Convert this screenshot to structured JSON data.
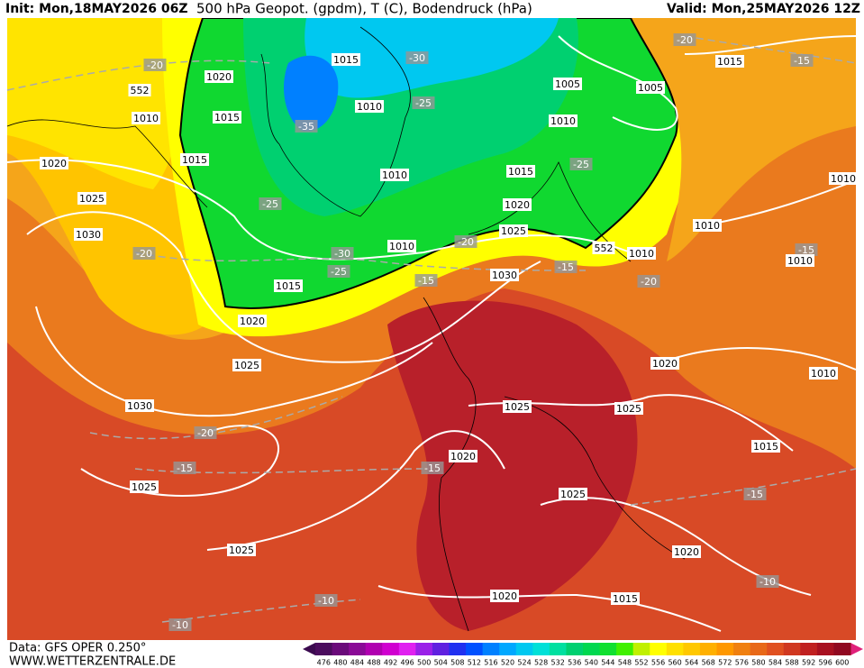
{
  "header": {
    "init": "Init: Mon,18MAY2026 06Z",
    "title": "500 hPa Geopot. (gpdm), T (C), Bodendruck (hPa)",
    "valid": "Valid: Mon,25MAY2026 12Z"
  },
  "map": {
    "labels": [
      "1015",
      "-30",
      "1020",
      "552",
      "1010",
      "1015",
      "1010",
      "-25",
      "-35",
      "1005",
      "1005",
      "1010",
      "1015",
      "-20",
      "-15",
      "-20",
      "1020",
      "1015",
      "1010",
      "1015",
      "-25",
      "1025",
      "-25",
      "1020",
      "1030",
      "1025",
      "1010",
      "-20",
      "552",
      "1010",
      "1010",
      "1010",
      "-15",
      "1010",
      "-20",
      "-30",
      "-25",
      "1015",
      "-15",
      "1030",
      "-15",
      "-20",
      "1020",
      "1025",
      "1020",
      "1010",
      "1030",
      "1025",
      "1025",
      "-20",
      "1020",
      "-15",
      "-15",
      "1015",
      "1025",
      "1025",
      "-15",
      "1025",
      "1020",
      "-10",
      "-10",
      "1020",
      "1015",
      "-10"
    ]
  },
  "footer": {
    "source": "Data: GFS OPER 0.250°",
    "site": "WWW.WETTERZENTRALE.DE"
  },
  "colorbar": {
    "labels": [
      476,
      480,
      484,
      488,
      492,
      496,
      500,
      504,
      508,
      512,
      516,
      520,
      524,
      528,
      532,
      536,
      540,
      544,
      548,
      552,
      556,
      560,
      564,
      568,
      572,
      576,
      580,
      584,
      588,
      592,
      596,
      600
    ],
    "colors": [
      "#4b0c5e",
      "#6a0a7a",
      "#8a0a96",
      "#b000b0",
      "#d000d0",
      "#e020f0",
      "#9a20e8",
      "#6020e0",
      "#2030f0",
      "#0050ff",
      "#0080ff",
      "#00a8ff",
      "#00c8f0",
      "#00e0d8",
      "#00e0a0",
      "#00d070",
      "#00d850",
      "#10e030",
      "#40f000",
      "#c0f000",
      "#ffff00",
      "#ffe000",
      "#ffc800",
      "#ffb000",
      "#ff9800",
      "#f08010",
      "#e86818",
      "#e05020",
      "#d03820",
      "#c02020",
      "#a81020",
      "#900820"
    ]
  }
}
